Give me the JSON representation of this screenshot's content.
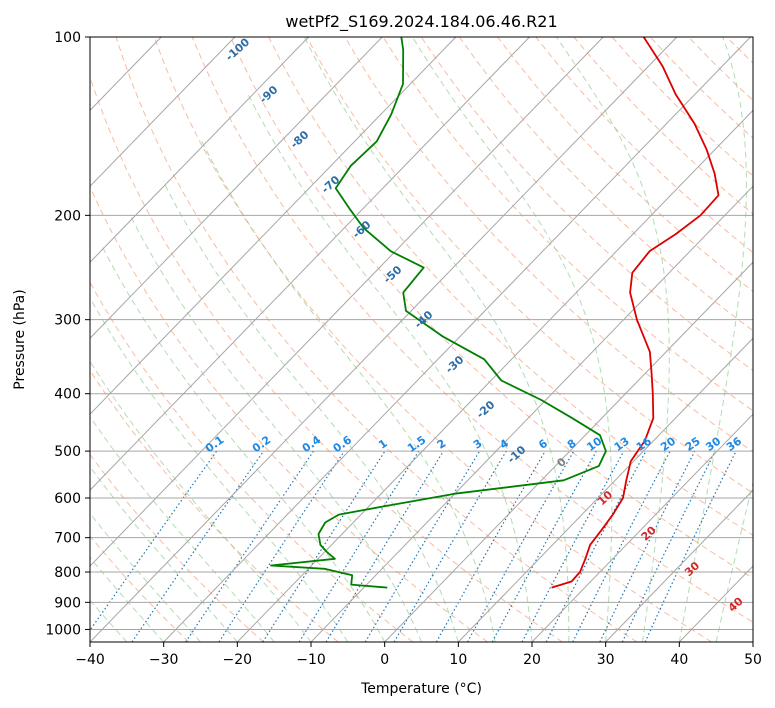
{
  "chart_data": {
    "type": "line",
    "title": "wetPf2_S169.2024.184.06.46.R21",
    "xlabel": "Temperature (°C)",
    "ylabel": "Pressure (hPa)",
    "xlim": [
      -40,
      50
    ],
    "ylim": [
      1050,
      100
    ],
    "yscale": "log",
    "skew": true,
    "grid": true,
    "xticks": [
      -40,
      -30,
      -20,
      -10,
      0,
      10,
      20,
      30,
      40,
      50
    ],
    "yticks": [
      100,
      200,
      300,
      400,
      500,
      600,
      700,
      800,
      900,
      1000
    ],
    "series": [
      {
        "color": "#dd0000",
        "points": [
          [
            850,
            15.5
          ],
          [
            830,
            17.4
          ],
          [
            800,
            17.3
          ],
          [
            760,
            16.3
          ],
          [
            720,
            15.1
          ],
          [
            680,
            14.7
          ],
          [
            640,
            14.2
          ],
          [
            600,
            13.4
          ],
          [
            560,
            11.5
          ],
          [
            520,
            9.6
          ],
          [
            480,
            8.8
          ],
          [
            440,
            7.0
          ],
          [
            400,
            3.7
          ],
          [
            370,
            0.9
          ],
          [
            340,
            -2.2
          ],
          [
            300,
            -8.2
          ],
          [
            270,
            -12.7
          ],
          [
            250,
            -15.0
          ],
          [
            230,
            -15.5
          ],
          [
            215,
            -14.2
          ],
          [
            200,
            -13.3
          ],
          [
            185,
            -13.5
          ],
          [
            170,
            -16.9
          ],
          [
            155,
            -21.1
          ],
          [
            140,
            -26.2
          ],
          [
            125,
            -32.6
          ],
          [
            112,
            -38.1
          ],
          [
            100,
            -44.5
          ]
        ]
      },
      {
        "color": "#007f00",
        "points": [
          [
            850,
            -6.8
          ],
          [
            840,
            -12.1
          ],
          [
            810,
            -13.2
          ],
          [
            790,
            -17.8
          ],
          [
            780,
            -25.5
          ],
          [
            760,
            -17.7
          ],
          [
            740,
            -19.7
          ],
          [
            720,
            -21.5
          ],
          [
            690,
            -23.2
          ],
          [
            660,
            -23.8
          ],
          [
            640,
            -23.0
          ],
          [
            620,
            -18.0
          ],
          [
            590,
            -10.0
          ],
          [
            560,
            3.0
          ],
          [
            530,
            5.9
          ],
          [
            500,
            4.9
          ],
          [
            470,
            2.0
          ],
          [
            440,
            -4.0
          ],
          [
            410,
            -10.6
          ],
          [
            380,
            -18.6
          ],
          [
            350,
            -23.7
          ],
          [
            320,
            -32.4
          ],
          [
            290,
            -40.7
          ],
          [
            270,
            -43.5
          ],
          [
            245,
            -44.0
          ],
          [
            230,
            -50.6
          ],
          [
            210,
            -57.4
          ],
          [
            195,
            -61.8
          ],
          [
            180,
            -66.4
          ],
          [
            165,
            -67.3
          ],
          [
            150,
            -67.0
          ],
          [
            135,
            -68.6
          ],
          [
            120,
            -71.0
          ],
          [
            105,
            -75.5
          ],
          [
            100,
            -77.4
          ]
        ]
      }
    ],
    "dry_adiabat_labels": [
      "-100",
      "-90",
      "-80",
      "-70",
      "-60",
      "-50",
      "-40",
      "-30",
      "-20",
      "-10",
      "0",
      "10",
      "20",
      "30",
      "40"
    ],
    "mixing_ratio_labels": [
      "0.1",
      "0.2",
      "0.4",
      "0.6",
      "1",
      "1.5",
      "2",
      "3",
      "4",
      "6",
      "8",
      "10",
      "13",
      "16",
      "20",
      "25",
      "30",
      "36"
    ],
    "colors": {
      "temperature": "#dd0000",
      "dewpoint": "#007f00",
      "isotherm": "#a6a6a6",
      "dry_adiabat": "#f4a582",
      "moist_adiabat": "#9fd39f",
      "mixing_ratio": "#1f77b4",
      "mixing_label": "#1e88e5",
      "adiabat_label_cold": "#2c6ea8",
      "adiabat_label_warm": "#d62728",
      "adiabat_label_zero": "#7f7f7f"
    }
  }
}
